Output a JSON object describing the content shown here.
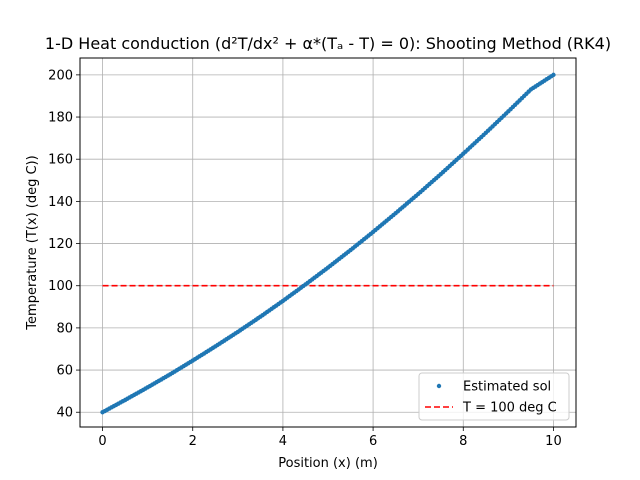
{
  "chart_data": {
    "type": "scatter",
    "title": "1-D Heat conduction (d²T/dx² + α*(Tₐ - T) = 0): Shooting Method (RK4)",
    "xlabel": "Position (x) (m)",
    "ylabel": "Temperature (T(x) (deg C))",
    "xlim": [
      -0.5,
      10.5
    ],
    "ylim": [
      33,
      208
    ],
    "xticks": [
      0,
      2,
      4,
      6,
      8,
      10
    ],
    "yticks": [
      40,
      60,
      80,
      100,
      120,
      140,
      160,
      180,
      200
    ],
    "grid": true,
    "legend_position": "lower-right",
    "series": [
      {
        "name": "Estimated sol",
        "style": "points",
        "color": "#1f77b4",
        "x": [
          0,
          0.5,
          1,
          1.5,
          2,
          2.5,
          3,
          3.5,
          4,
          4.5,
          5,
          5.5,
          6,
          6.5,
          7,
          7.5,
          8,
          8.5,
          9,
          9.5,
          10
        ],
        "y": [
          40,
          45.8,
          51.8,
          58.0,
          64.5,
          71.2,
          78.1,
          85.3,
          92.8,
          100.6,
          108.6,
          116.9,
          125.5,
          134.4,
          143.5,
          152.9,
          162.6,
          172.5,
          182.7,
          193.1,
          200
        ]
      },
      {
        "name": "T = 100 deg C",
        "style": "dashed-line",
        "color": "#ff0000",
        "x": [
          0,
          10
        ],
        "y": [
          100,
          100
        ]
      }
    ]
  }
}
